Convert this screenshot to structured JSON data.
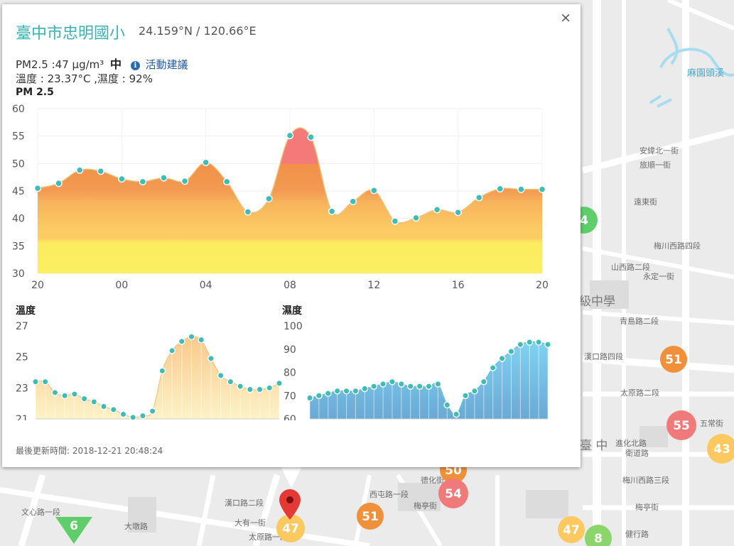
{
  "popup": {
    "station_name": "臺中市忠明國小",
    "coordinates": "24.159°N / 120.66°E",
    "pm25_text": "PM2.5 :47 μg/m³",
    "pm25_level": "中",
    "info_icon": "i",
    "advice_link": "活動建議",
    "temp_humidity_text": "溫度 : 23.37°C ,濕度 : 92%",
    "close_label": "×",
    "last_updated": "最後更新時間: 2018-12-21 20:48:24"
  },
  "charts": {
    "pm25": {
      "title": "PM 2.5",
      "x_ticks": [
        "20",
        "00",
        "04",
        "08",
        "12",
        "16",
        "20"
      ],
      "y_ticks": [
        30,
        35,
        40,
        45,
        50,
        55,
        60
      ]
    },
    "temperature": {
      "title": "溫度",
      "y_ticks": [
        21,
        23,
        25,
        27
      ]
    },
    "humidity": {
      "title": "濕度",
      "y_ticks": [
        60,
        70,
        80,
        90,
        100
      ]
    }
  },
  "chart_data": [
    {
      "type": "area",
      "title": "PM 2.5",
      "x": [
        "20",
        "21",
        "22",
        "23",
        "00",
        "01",
        "02",
        "03",
        "04",
        "05",
        "06",
        "07",
        "08",
        "09",
        "10",
        "11",
        "12",
        "13",
        "14",
        "15",
        "16",
        "17",
        "18",
        "19",
        "20"
      ],
      "values": [
        45.5,
        46.4,
        48.8,
        48.6,
        47.2,
        46.7,
        47.4,
        46.8,
        50.2,
        46.7,
        41.2,
        43.6,
        55.1,
        54.8,
        41.3,
        43.1,
        45.1,
        39.5,
        40.1,
        41.6,
        41.1,
        43.8,
        45.4,
        45.3,
        45.3
      ],
      "ylim": [
        30,
        60
      ],
      "grid": true
    },
    {
      "type": "area",
      "title": "溫度",
      "values": [
        23.4,
        23.4,
        22.7,
        22.5,
        22.6,
        22.3,
        22.1,
        21.8,
        21.6,
        21.3,
        21.1,
        21.2,
        21.5,
        24.1,
        25.4,
        26.0,
        26.3,
        26.1,
        24.9,
        23.8,
        23.4,
        23.1,
        22.9,
        22.9,
        23.0,
        23.3
      ],
      "ylim": [
        21,
        27
      ],
      "grid": false
    },
    {
      "type": "area",
      "title": "濕度",
      "values": [
        69,
        70,
        71,
        72,
        72,
        72,
        73,
        74,
        75,
        76,
        75,
        74,
        74,
        74,
        75,
        66,
        62,
        70,
        72,
        76,
        82,
        86,
        89,
        92,
        93,
        93,
        92
      ],
      "ylim": [
        60,
        100
      ],
      "grid": false
    }
  ],
  "map": {
    "markers": [
      {
        "label": "51",
        "color": "#f0903a"
      },
      {
        "label": "55",
        "color": "#f07a7a"
      },
      {
        "label": "43",
        "color": "#fcc860"
      },
      {
        "label": "50",
        "color": "#f0903a"
      },
      {
        "label": "54",
        "color": "#f07a7a"
      },
      {
        "label": "51",
        "color": "#f0903a"
      },
      {
        "label": "47",
        "color": "#fcc860"
      },
      {
        "label": "47",
        "color": "#fcc860"
      },
      {
        "label": "8",
        "color": "#8bd66a"
      },
      {
        "label": "6",
        "color": "#5fce6a"
      },
      {
        "label": "4",
        "color": "#5fce6a"
      }
    ],
    "labels": {
      "water": "麻園頭溪",
      "district": "臺 中",
      "road_1": "進化北路",
      "road_2": "太原路二段",
      "road_3": "梅亭街",
      "road_4": "健行路",
      "road_5": "梅川西路四段",
      "road_6": "漢口路四段",
      "road_7": "山西路二段",
      "road_8": "永定一街",
      "road_9": "青島路二段",
      "road_10": "漢口路二段",
      "road_11": "太原路一段",
      "road_12": "文心路一段",
      "road_13": "大墩路",
      "road_14": "西屯路一段",
      "road_15": "衛道路",
      "road_16": "五常街",
      "road_17": "德化街",
      "road_18": "梅川西路三段",
      "road_19": "梅亭街",
      "road_20": "安緯北一街",
      "road_21": "旅順一街",
      "road_22": "遠東街",
      "road_23": "大有一街",
      "road_24": "級中學"
    }
  }
}
